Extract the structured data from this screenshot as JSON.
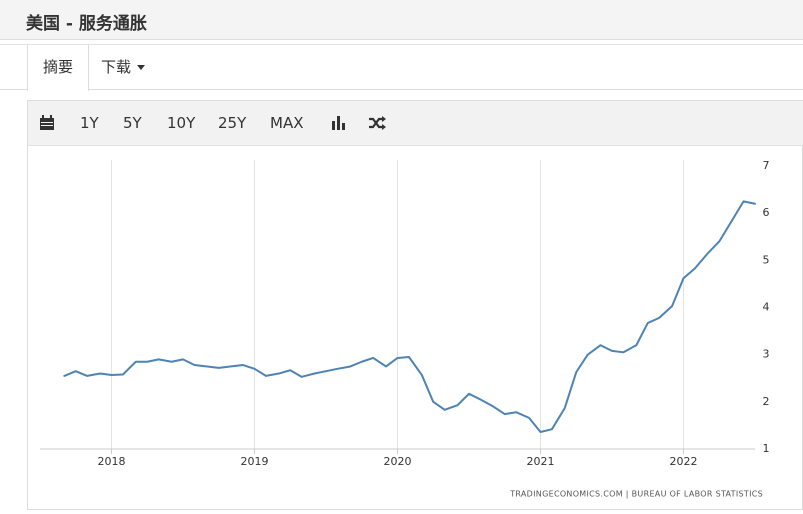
{
  "header": {
    "title": "美国 - 服务通胀"
  },
  "tabs": [
    "摘要",
    "下载"
  ],
  "toolbar": [
    "1Y",
    "5Y",
    "10Y",
    "25Y",
    "MAX"
  ],
  "chart_data": {
    "type": "line",
    "x": [
      2017.67,
      2017.75,
      2017.83,
      2017.92,
      2018.0,
      2018.08,
      2018.17,
      2018.25,
      2018.33,
      2018.42,
      2018.5,
      2018.58,
      2018.67,
      2018.75,
      2018.83,
      2018.92,
      2019.0,
      2019.08,
      2019.17,
      2019.25,
      2019.33,
      2019.42,
      2019.5,
      2019.58,
      2019.67,
      2019.75,
      2019.83,
      2019.92,
      2020.0,
      2020.08,
      2020.17,
      2020.25,
      2020.33,
      2020.42,
      2020.5,
      2020.58,
      2020.67,
      2020.75,
      2020.83,
      2020.92,
      2021.0,
      2021.08,
      2021.17,
      2021.25,
      2021.33,
      2021.42,
      2021.5,
      2021.58,
      2021.67,
      2021.75,
      2021.83,
      2021.92,
      2022.0,
      2022.08,
      2022.17,
      2022.25,
      2022.33,
      2022.42,
      2022.5
    ],
    "series": [
      {
        "color": "#4d83b5",
        "values": [
          2.55,
          2.65,
          2.55,
          2.6,
          2.57,
          2.58,
          2.85,
          2.85,
          2.9,
          2.85,
          2.9,
          2.78,
          2.75,
          2.72,
          2.75,
          2.78,
          2.7,
          2.55,
          2.6,
          2.67,
          2.53,
          2.6,
          2.65,
          2.7,
          2.75,
          2.85,
          2.93,
          2.75,
          2.93,
          2.95,
          2.57,
          2.0,
          1.83,
          1.93,
          2.17,
          2.05,
          1.9,
          1.74,
          1.78,
          1.66,
          1.36,
          1.42,
          1.87,
          2.63,
          3.0,
          3.2,
          3.08,
          3.05,
          3.2,
          3.67,
          3.78,
          4.03,
          4.62,
          4.83,
          5.15,
          5.4,
          5.8,
          6.25,
          6.2
        ]
      }
    ],
    "xlim": [
      2017.5,
      2022.5
    ],
    "xticks": [
      2018,
      2019,
      2020,
      2021,
      2022
    ],
    "ylim": [
      1,
      7
    ],
    "yticks": [
      1,
      2,
      3,
      4,
      5,
      6,
      7
    ],
    "grid": "x",
    "source": "TRADINGECONOMICS.COM | BUREAU OF LABOR STATISTICS"
  }
}
